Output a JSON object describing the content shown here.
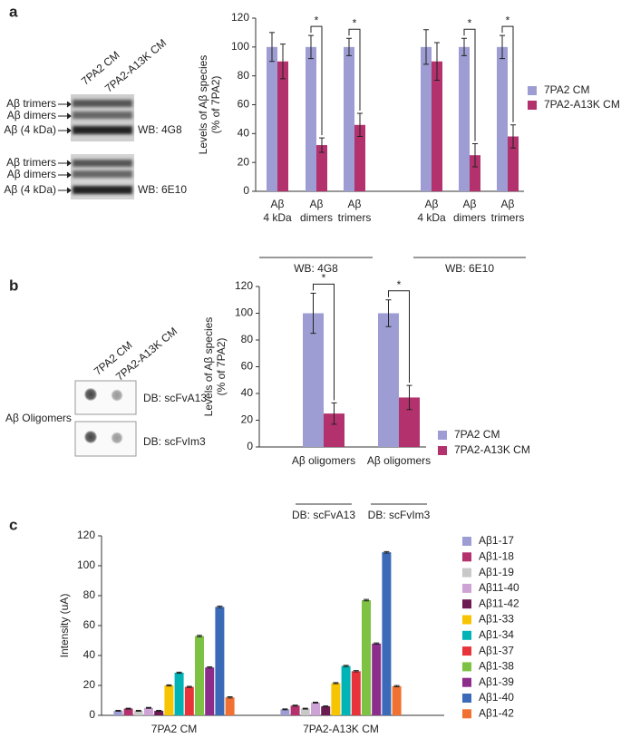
{
  "panel_labels": [
    "a",
    "b",
    "c"
  ],
  "blots": {
    "a": {
      "lanes": [
        "7PA2 CM",
        "7PA2-A13K CM"
      ],
      "blocks": [
        {
          "bands": [
            "Aβ trimers",
            "Aβ dimers",
            "Aβ (4 kDa)"
          ],
          "antibody": "WB: 4G8"
        },
        {
          "bands": [
            "Aβ trimers",
            "Aβ dimers",
            "Aβ (4 kDa)"
          ],
          "antibody": "WB: 6E10"
        }
      ]
    },
    "b": {
      "lanes": [
        "7PA2 CM",
        "7PA2-A13K CM"
      ],
      "sample": "Aβ Oligomers",
      "blocks": [
        {
          "antibody": "DB: scFvA13"
        },
        {
          "antibody": "DB: scFvIm3"
        }
      ]
    }
  },
  "chart_data": [
    {
      "type": "bar",
      "y_label": [
        "Levels of Aβ species",
        "(% of 7PA2)"
      ],
      "categories": [
        [
          "Aβ",
          "4 kDa"
        ],
        [
          "Aβ",
          "dimers"
        ],
        [
          "Aβ",
          "trimers"
        ],
        [
          "Aβ",
          "4 kDa"
        ],
        [
          "Aβ",
          "dimers"
        ],
        [
          "Aβ",
          "trimers"
        ]
      ],
      "group_labels": [
        "WB: 4G8",
        "WB: 6E10"
      ],
      "series": [
        {
          "name": "7PA2 CM",
          "color": "#9d9dd3",
          "values": [
            100,
            100,
            100,
            100,
            100,
            100
          ],
          "errors": [
            10,
            8,
            6,
            12,
            6,
            8
          ]
        },
        {
          "name": "7PA2-A13K CM",
          "color": "#b3316c",
          "values": [
            90,
            32,
            46,
            90,
            25,
            38
          ],
          "errors": [
            12,
            5,
            8,
            13,
            8,
            8
          ]
        }
      ],
      "significance": [
        null,
        "*",
        "*",
        null,
        "*",
        "*"
      ],
      "ylim": [
        0,
        120
      ],
      "yticks": [
        0,
        20,
        40,
        60,
        80,
        100,
        120
      ]
    },
    {
      "type": "bar",
      "y_label": [
        "Levels of Aβ species",
        "(% of 7PA2)"
      ],
      "categories": [
        [
          "Aβ oligomers"
        ],
        [
          "Aβ oligomers"
        ]
      ],
      "group_labels": [
        "DB: scFvA13",
        "DB: scFvIm3"
      ],
      "series": [
        {
          "name": "7PA2 CM",
          "color": "#9d9dd3",
          "values": [
            100,
            100
          ],
          "errors": [
            15,
            10
          ]
        },
        {
          "name": "7PA2-A13K CM",
          "color": "#b3316c",
          "values": [
            25,
            37
          ],
          "errors": [
            8,
            9
          ]
        }
      ],
      "significance": [
        "*",
        "*"
      ],
      "ylim": [
        0,
        120
      ],
      "yticks": [
        0,
        20,
        40,
        60,
        80,
        100,
        120
      ]
    },
    {
      "type": "bar",
      "y_label": [
        "Intensity (uA)"
      ],
      "categories": [
        "7PA2 CM",
        "7PA2-A13K CM"
      ],
      "series": [
        {
          "name": "Aβ1-17",
          "color": "#9d9dd3",
          "values": [
            3,
            4
          ],
          "errors": [
            0.3,
            0.3
          ]
        },
        {
          "name": "Aβ1-18",
          "color": "#b3316c",
          "values": [
            4.5,
            6.5
          ],
          "errors": [
            0.3,
            0.3
          ]
        },
        {
          "name": "Aβ1-19",
          "color": "#c8c8c8",
          "values": [
            3,
            4.5
          ],
          "errors": [
            0.3,
            0.3
          ]
        },
        {
          "name": "Aβ11-40",
          "color": "#cda3d6",
          "values": [
            5,
            8.5
          ],
          "errors": [
            0.3,
            0.3
          ]
        },
        {
          "name": "Aβ11-42",
          "color": "#6b1a52",
          "values": [
            3,
            6
          ],
          "errors": [
            0.3,
            0.3
          ]
        },
        {
          "name": "Aβ1-33",
          "color": "#f6c400",
          "values": [
            20,
            21.5
          ],
          "errors": [
            0.4,
            0.4
          ]
        },
        {
          "name": "Aβ1-34",
          "color": "#00b3b5",
          "values": [
            28.5,
            33
          ],
          "errors": [
            0.4,
            0.4
          ]
        },
        {
          "name": "Aβ1-37",
          "color": "#e8333a",
          "values": [
            19,
            29.5
          ],
          "errors": [
            0.4,
            0.4
          ]
        },
        {
          "name": "Aβ1-38",
          "color": "#7dc242",
          "values": [
            53,
            77
          ],
          "errors": [
            0.5,
            0.5
          ]
        },
        {
          "name": "Aβ1-39",
          "color": "#8c2c8b",
          "values": [
            32,
            48
          ],
          "errors": [
            0.4,
            0.4
          ]
        },
        {
          "name": "Aβ1-40",
          "color": "#3b6bb8",
          "values": [
            72.5,
            109
          ],
          "errors": [
            0.5,
            0.5
          ]
        },
        {
          "name": "Aβ1-42",
          "color": "#f07131",
          "values": [
            12,
            19.5
          ],
          "errors": [
            0.4,
            0.4
          ]
        }
      ],
      "ylim": [
        0,
        120
      ],
      "yticks": [
        0,
        20,
        40,
        60,
        80,
        100,
        120
      ]
    }
  ]
}
